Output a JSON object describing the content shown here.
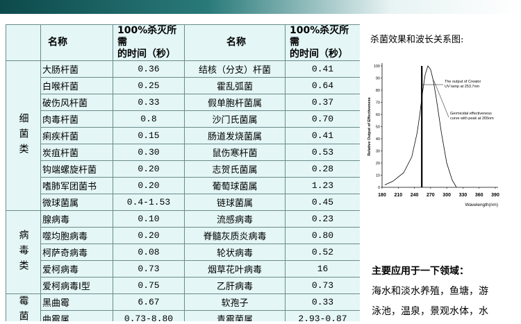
{
  "table": {
    "headers": [
      "名称",
      "100%杀灭所需\n的时间（秒）",
      "名称",
      "100%杀灭所需\n的时间（秒）"
    ],
    "groups": [
      {
        "label": "细菌类",
        "rows": [
          [
            "大肠杆菌",
            "0.36",
            "结核（分支）杆菌",
            "0.41"
          ],
          [
            "白喉杆菌",
            "0.25",
            "霍乱弧菌",
            "0.64"
          ],
          [
            "破伤风杆菌",
            "0.33",
            "假单胞杆菌属",
            "0.37"
          ],
          [
            "肉毒杆菌",
            "0.8",
            "沙门氏菌属",
            "0.70"
          ],
          [
            "痢疾杆菌",
            "0.15",
            "肠道发烧菌属",
            "0.41"
          ],
          [
            "炭疽杆菌",
            "0.30",
            "鼠伤寒杆菌",
            "0.53"
          ],
          [
            "钩端螺旋杆菌",
            "0.20",
            "志贺氏菌属",
            "0.28"
          ],
          [
            "嗜肺军团菌书",
            "0.20",
            "葡萄球菌属",
            "1.23"
          ],
          [
            "微球菌属",
            "0.4-1.53",
            "链球菌属",
            "0.45"
          ]
        ]
      },
      {
        "label": "病毒类",
        "rows": [
          [
            "腺病毒",
            "0.10",
            "流感病毒",
            "0.23"
          ],
          [
            "噬均胞病毒",
            "0.20",
            "脊髓灰质炎病毒",
            "0.80"
          ],
          [
            "柯萨奇病毒",
            "0.08",
            "轮状病毒",
            "0.52"
          ],
          [
            "爱柯病毒",
            "0.73",
            "烟草花叶病毒",
            "16"
          ],
          [
            "爱柯病毒I型",
            "0.75",
            "乙肝病毒",
            "0.73"
          ]
        ]
      },
      {
        "label": "霉菌",
        "rows": [
          [
            "黑曲霉",
            "6.67",
            "软孢子",
            "0.33"
          ],
          [
            "曲霉属",
            "0.73-8.80",
            "青霉菌属",
            "2.93-0.87"
          ]
        ]
      }
    ]
  },
  "figure": {
    "title": "杀菌效果和波长关系图:",
    "chart": {
      "type": "line",
      "ylabel": "Relative Output of Effectiveness",
      "xlabel": "Wavelength(nm)",
      "xlim": [
        180,
        390
      ],
      "ylim": [
        0,
        100
      ],
      "xticks": [
        180,
        210,
        240,
        270,
        300,
        330,
        360,
        390
      ],
      "yticks": [
        0,
        10,
        20,
        30,
        40,
        50,
        60,
        70,
        80,
        90,
        100
      ],
      "x": [
        185,
        200,
        220,
        235,
        245,
        250,
        255,
        260,
        265,
        270,
        275,
        280,
        290,
        300,
        310,
        318
      ],
      "values": [
        2,
        5,
        12,
        25,
        45,
        60,
        78,
        93,
        100,
        97,
        88,
        75,
        45,
        20,
        6,
        0
      ],
      "lamp": 253.7,
      "annotations": [
        [
          "The output of Creator",
          "UV lamp at 253.7nm"
        ],
        [
          "Germicidal effectiveness",
          "curve with peak at 265nm"
        ]
      ]
    }
  },
  "applications": {
    "title": "主要应用于一下领域：",
    "lines": [
      "海水和淡水养殖，鱼塘，游",
      "泳池，温泉，景观水体，水"
    ]
  }
}
